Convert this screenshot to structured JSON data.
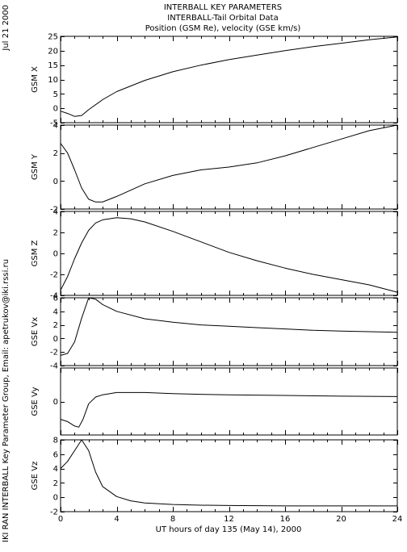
{
  "header": {
    "title_lines": [
      "INTERBALL KEY PARAMETERS",
      "INTERBALL-Tail Orbital Data",
      "Position (GSM Re), velocity (GSE km/s)"
    ],
    "date_stamp": "Jul 21 2000",
    "credit": "IKI RAN INTERBALL Key Parameter Group, Email: apetrukov@iki.rssi.ru"
  },
  "chart_data": [
    {
      "type": "line",
      "ylabel": "GSM X",
      "ylim": [
        -5,
        25
      ],
      "yticks": [
        -5,
        0,
        5,
        10,
        15,
        20,
        25
      ],
      "x": [
        0,
        0.5,
        1,
        1.5,
        2,
        3,
        4,
        6,
        8,
        10,
        12,
        14,
        16,
        18,
        20,
        22,
        24
      ],
      "values": [
        -1.0,
        -1.8,
        -2.8,
        -2.5,
        -0.5,
        3.0,
        5.8,
        9.7,
        12.7,
        15.0,
        16.9,
        18.5,
        20.0,
        21.4,
        22.6,
        23.8,
        24.8
      ]
    },
    {
      "type": "line",
      "ylabel": "GSM Y",
      "ylim": [
        -2,
        4
      ],
      "yticks": [
        -2,
        0,
        2,
        4
      ],
      "x": [
        0,
        0.5,
        1,
        1.5,
        2,
        2.5,
        3,
        4,
        6,
        8,
        10,
        12,
        14,
        16,
        18,
        20,
        22,
        24
      ],
      "values": [
        2.7,
        2.0,
        0.8,
        -0.5,
        -1.3,
        -1.5,
        -1.5,
        -1.1,
        -0.2,
        0.4,
        0.8,
        1.0,
        1.3,
        1.8,
        2.4,
        3.0,
        3.6,
        4.0
      ]
    },
    {
      "type": "line",
      "ylabel": "GSM Z",
      "ylim": [
        -4,
        4
      ],
      "yticks": [
        -4,
        -2,
        0,
        2,
        4
      ],
      "x": [
        0,
        0.5,
        1,
        1.5,
        2,
        2.5,
        3,
        4,
        5,
        6,
        8,
        10,
        12,
        14,
        16,
        18,
        20,
        22,
        24
      ],
      "values": [
        -3.5,
        -2.2,
        -0.5,
        1.0,
        2.2,
        2.9,
        3.2,
        3.4,
        3.3,
        3.0,
        2.1,
        1.1,
        0.1,
        -0.7,
        -1.4,
        -2.0,
        -2.5,
        -3.0,
        -3.7
      ]
    },
    {
      "type": "line",
      "ylabel": "GSE Vx",
      "ylim": [
        -4,
        6
      ],
      "yticks": [
        -4,
        -2,
        0,
        2,
        4,
        6
      ],
      "x": [
        0,
        0.5,
        1,
        1.5,
        2,
        2.5,
        3,
        4,
        6,
        8,
        10,
        12,
        14,
        16,
        18,
        20,
        22,
        24
      ],
      "values": [
        -2.5,
        -2.2,
        -0.5,
        3.0,
        6.0,
        5.8,
        5.0,
        4.0,
        2.9,
        2.4,
        2.0,
        1.8,
        1.6,
        1.4,
        1.2,
        1.1,
        1.0,
        0.9
      ]
    },
    {
      "type": "line",
      "ylabel": "GSE Vy",
      "ylim": [
        -1.5,
        1.5
      ],
      "yticks": [
        0
      ],
      "x": [
        0,
        0.5,
        1,
        1.3,
        1.6,
        2,
        2.5,
        3,
        4,
        6,
        8,
        10,
        12,
        16,
        20,
        24
      ],
      "values": [
        -0.8,
        -0.9,
        -1.1,
        -1.15,
        -0.8,
        -0.1,
        0.2,
        0.3,
        0.4,
        0.4,
        0.35,
        0.32,
        0.3,
        0.27,
        0.24,
        0.22
      ]
    },
    {
      "type": "line",
      "ylabel": "GSE Vz",
      "ylim": [
        -2,
        8
      ],
      "yticks": [
        -2,
        0,
        2,
        4,
        6,
        8
      ],
      "x": [
        0,
        0.5,
        1,
        1.5,
        2,
        2.5,
        3,
        4,
        5,
        6,
        8,
        10,
        12,
        16,
        20,
        24
      ],
      "values": [
        4.0,
        5.0,
        6.5,
        8.0,
        6.5,
        3.5,
        1.5,
        0.1,
        -0.5,
        -0.8,
        -1.0,
        -1.1,
        -1.15,
        -1.2,
        -1.2,
        -1.2
      ]
    }
  ],
  "xaxis": {
    "label": "UT hours of day 135 (May 14), 2000",
    "range": [
      0,
      24
    ],
    "ticks": [
      0,
      4,
      8,
      12,
      16,
      20,
      24
    ]
  }
}
